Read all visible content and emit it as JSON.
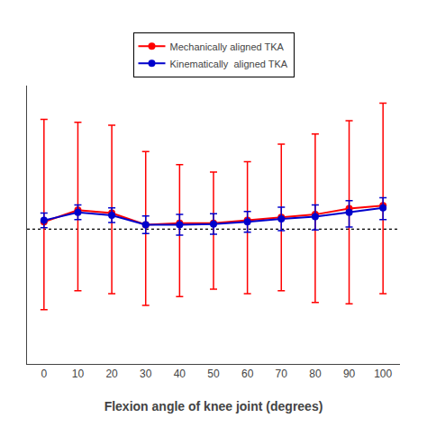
{
  "chart_data": {
    "type": "line",
    "x_label": "Flexion angle of knee joint (degrees)",
    "x": [
      0,
      10,
      20,
      30,
      40,
      50,
      60,
      70,
      80,
      90,
      100
    ],
    "series": [
      {
        "name": "Mechanically aligned TKA",
        "color": "#ff0000",
        "marker": "circle",
        "line_style": "solid",
        "values": [
          1.2,
          2.0,
          1.8,
          1.0,
          1.1,
          1.1,
          1.3,
          1.5,
          1.7,
          2.1,
          2.3
        ],
        "error_upper": [
          7.0,
          6.0,
          6.0,
          5.0,
          4.0,
          3.5,
          4.0,
          5.0,
          5.5,
          6.0,
          7.0
        ],
        "error_lower": [
          6.0,
          5.5,
          5.5,
          5.5,
          5.0,
          4.5,
          5.0,
          5.0,
          6.0,
          6.5,
          6.0
        ]
      },
      {
        "name": "Kinematically  aligned TKA",
        "color": "#0000cc",
        "marker": "circle",
        "line_style": "solid",
        "values": [
          1.3,
          1.85,
          1.65,
          1.0,
          1.0,
          1.05,
          1.2,
          1.4,
          1.55,
          1.85,
          2.15
        ],
        "error_upper": [
          0.5,
          0.5,
          0.5,
          0.6,
          0.7,
          0.7,
          0.7,
          0.8,
          0.8,
          0.8,
          0.7
        ],
        "error_lower": [
          0.5,
          0.5,
          0.5,
          0.6,
          0.7,
          0.7,
          0.7,
          0.8,
          0.9,
          1.0,
          0.8
        ]
      }
    ],
    "hlines": [
      {
        "y": 0.7,
        "color": "#000000",
        "line_style": "dotted"
      }
    ],
    "xlim": [
      -5,
      105
    ],
    "xticks": [
      0,
      10,
      20,
      30,
      40,
      50,
      60,
      70,
      80,
      90,
      100
    ],
    "ylim": [
      -8.5,
      10.5
    ],
    "yticks": [],
    "tick_labels": "x",
    "grid": false,
    "legend": "top"
  }
}
